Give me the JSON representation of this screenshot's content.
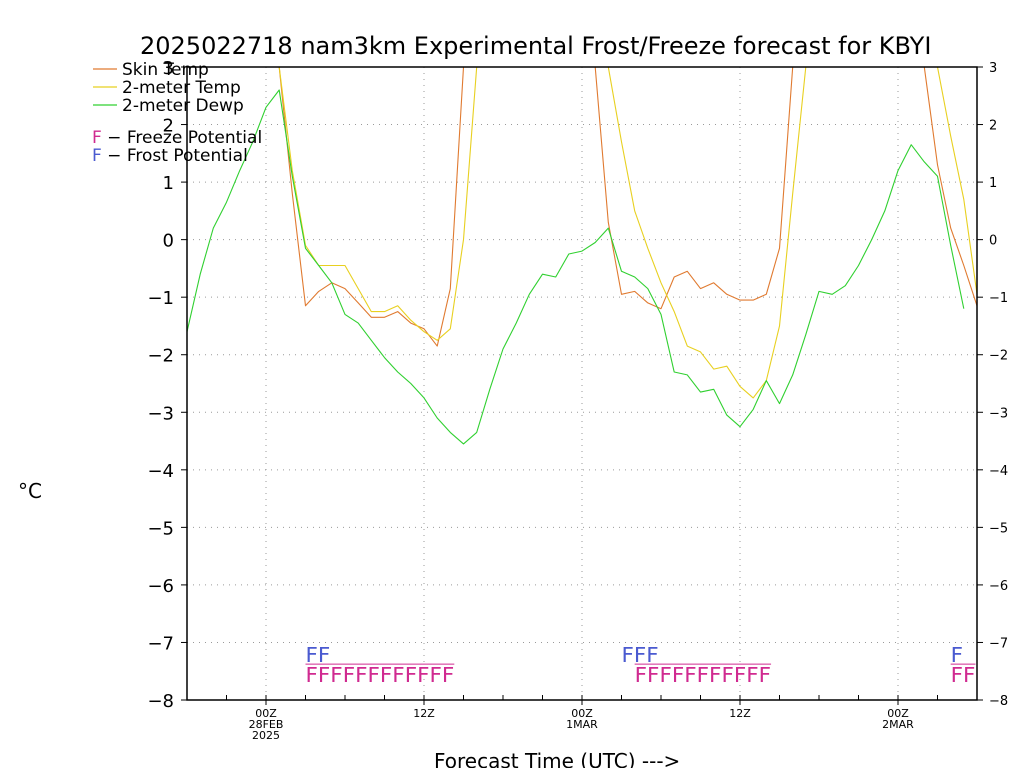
{
  "chart_data": {
    "type": "line",
    "title": "2025022718 nam3km Experimental Frost/Freeze forecast for KBYI",
    "xlabel": "Forecast Time (UTC) --->",
    "ylabel": "°C",
    "ylim": [
      -8,
      3
    ],
    "yticks": [
      3,
      2,
      1,
      0,
      -1,
      -2,
      -3,
      -4,
      -5,
      -6,
      -7,
      -8
    ],
    "yticks_right": [
      3,
      2,
      1,
      0,
      -1,
      -2,
      -3,
      -4,
      -5,
      -6,
      -7,
      -8
    ],
    "grid": true,
    "legend_position": "top-left",
    "x_units": "hours from 2025-02-27 18Z",
    "xlim": [
      0,
      60
    ],
    "x_ticks": [
      {
        "x": 6,
        "lines": [
          "00Z",
          "28FEB",
          "2025"
        ]
      },
      {
        "x": 18,
        "lines": [
          "12Z"
        ]
      },
      {
        "x": 30,
        "lines": [
          "00Z",
          "1MAR"
        ]
      },
      {
        "x": 42,
        "lines": [
          "12Z"
        ]
      },
      {
        "x": 54,
        "lines": [
          "00Z",
          "2MAR"
        ]
      }
    ],
    "series": [
      {
        "name": "Skin Temp",
        "color": "#e07a30",
        "points": [
          [
            7,
            3
          ],
          [
            8,
            0.8
          ],
          [
            9,
            -1.15
          ],
          [
            10,
            -0.9
          ],
          [
            11,
            -0.75
          ],
          [
            12,
            -0.85
          ],
          [
            13,
            -1.1
          ],
          [
            14,
            -1.35
          ],
          [
            15,
            -1.35
          ],
          [
            16,
            -1.25
          ],
          [
            17,
            -1.45
          ],
          [
            18,
            -1.55
          ],
          [
            19,
            -1.85
          ],
          [
            20,
            -0.85
          ],
          [
            21,
            3
          ],
          [
            31,
            3
          ],
          [
            32,
            0.3
          ],
          [
            33,
            -0.95
          ],
          [
            34,
            -0.9
          ],
          [
            35,
            -1.1
          ],
          [
            36,
            -1.2
          ],
          [
            37,
            -0.65
          ],
          [
            38,
            -0.55
          ],
          [
            39,
            -0.85
          ],
          [
            40,
            -0.75
          ],
          [
            41,
            -0.95
          ],
          [
            42,
            -1.05
          ],
          [
            43,
            -1.05
          ],
          [
            44,
            -0.95
          ],
          [
            45,
            -0.15
          ],
          [
            46,
            3
          ],
          [
            56,
            3
          ],
          [
            57,
            1.3
          ],
          [
            58,
            0.2
          ],
          [
            59,
            -0.45
          ],
          [
            60,
            -1.15
          ]
        ]
      },
      {
        "name": "2-meter Temp",
        "color": "#e8d020",
        "points": [
          [
            7,
            3
          ],
          [
            8,
            1.2
          ],
          [
            9,
            -0.1
          ],
          [
            10,
            -0.45
          ],
          [
            11,
            -0.45
          ],
          [
            12,
            -0.45
          ],
          [
            13,
            -0.85
          ],
          [
            14,
            -1.25
          ],
          [
            15,
            -1.25
          ],
          [
            16,
            -1.15
          ],
          [
            17,
            -1.4
          ],
          [
            18,
            -1.6
          ],
          [
            19,
            -1.75
          ],
          [
            20,
            -1.55
          ],
          [
            21,
            0.0
          ],
          [
            22,
            3
          ],
          [
            32,
            3
          ],
          [
            33,
            1.7
          ],
          [
            34,
            0.5
          ],
          [
            35,
            -0.15
          ],
          [
            36,
            -0.75
          ],
          [
            37,
            -1.25
          ],
          [
            38,
            -1.85
          ],
          [
            39,
            -1.95
          ],
          [
            40,
            -2.25
          ],
          [
            41,
            -2.2
          ],
          [
            42,
            -2.55
          ],
          [
            43,
            -2.75
          ],
          [
            44,
            -2.45
          ],
          [
            45,
            -1.5
          ],
          [
            46,
            0.8
          ],
          [
            47,
            3
          ],
          [
            57,
            3
          ],
          [
            58,
            1.8
          ],
          [
            59,
            0.7
          ],
          [
            60,
            -0.95
          ]
        ]
      },
      {
        "name": "2-meter Dewp",
        "color": "#30d030",
        "points": [
          [
            0,
            -1.6
          ],
          [
            1,
            -0.6
          ],
          [
            2,
            0.2
          ],
          [
            3,
            0.65
          ],
          [
            4,
            1.2
          ],
          [
            5,
            1.7
          ],
          [
            6,
            2.3
          ],
          [
            7,
            2.6
          ],
          [
            8,
            1.1
          ],
          [
            9,
            -0.15
          ],
          [
            10,
            -0.45
          ],
          [
            11,
            -0.75
          ],
          [
            12,
            -1.3
          ],
          [
            13,
            -1.45
          ],
          [
            14,
            -1.75
          ],
          [
            15,
            -2.05
          ],
          [
            16,
            -2.3
          ],
          [
            17,
            -2.5
          ],
          [
            18,
            -2.75
          ],
          [
            19,
            -3.1
          ],
          [
            20,
            -3.35
          ],
          [
            21,
            -3.55
          ],
          [
            22,
            -3.35
          ],
          [
            23,
            -2.6
          ],
          [
            24,
            -1.9
          ],
          [
            25,
            -1.45
          ],
          [
            26,
            -0.95
          ],
          [
            27,
            -0.6
          ],
          [
            28,
            -0.65
          ],
          [
            29,
            -0.25
          ],
          [
            30,
            -0.2
          ],
          [
            31,
            -0.05
          ],
          [
            32,
            0.2
          ],
          [
            33,
            -0.55
          ],
          [
            34,
            -0.65
          ],
          [
            35,
            -0.85
          ],
          [
            36,
            -1.3
          ],
          [
            37,
            -2.3
          ],
          [
            38,
            -2.35
          ],
          [
            39,
            -2.65
          ],
          [
            40,
            -2.6
          ],
          [
            41,
            -3.05
          ],
          [
            42,
            -3.25
          ],
          [
            43,
            -2.95
          ],
          [
            44,
            -2.45
          ],
          [
            45,
            -2.85
          ],
          [
            46,
            -2.35
          ],
          [
            47,
            -1.65
          ],
          [
            48,
            -0.9
          ],
          [
            49,
            -0.95
          ],
          [
            50,
            -0.8
          ],
          [
            51,
            -0.45
          ],
          [
            52,
            0.0
          ],
          [
            53,
            0.5
          ],
          [
            54,
            1.2
          ],
          [
            55,
            1.65
          ],
          [
            56,
            1.35
          ],
          [
            57,
            1.1
          ],
          [
            58,
            -0.1
          ],
          [
            59,
            -1.2
          ]
        ]
      }
    ],
    "potential_legend": [
      {
        "letter": "F",
        "text": " − Freeze Potential",
        "color": "#d02a90"
      },
      {
        "letter": "F",
        "text": " − Frost Potential",
        "color": "#4a5ad0"
      }
    ],
    "frost_potential": {
      "color": "#4a5ad0",
      "level": -7.2,
      "runs": [
        {
          "start": 9,
          "text": "FF"
        },
        {
          "start": 33,
          "text": "FFF"
        },
        {
          "start": 58,
          "text": "F"
        }
      ]
    },
    "freeze_potential": {
      "color": "#d02a90",
      "level": -7.55,
      "runs": [
        {
          "start": 9,
          "text": "FFFFFFFFFFFF"
        },
        {
          "start": 34,
          "text": "FFFFFFFFFFF"
        },
        {
          "start": 58,
          "text": "FF"
        }
      ]
    }
  }
}
